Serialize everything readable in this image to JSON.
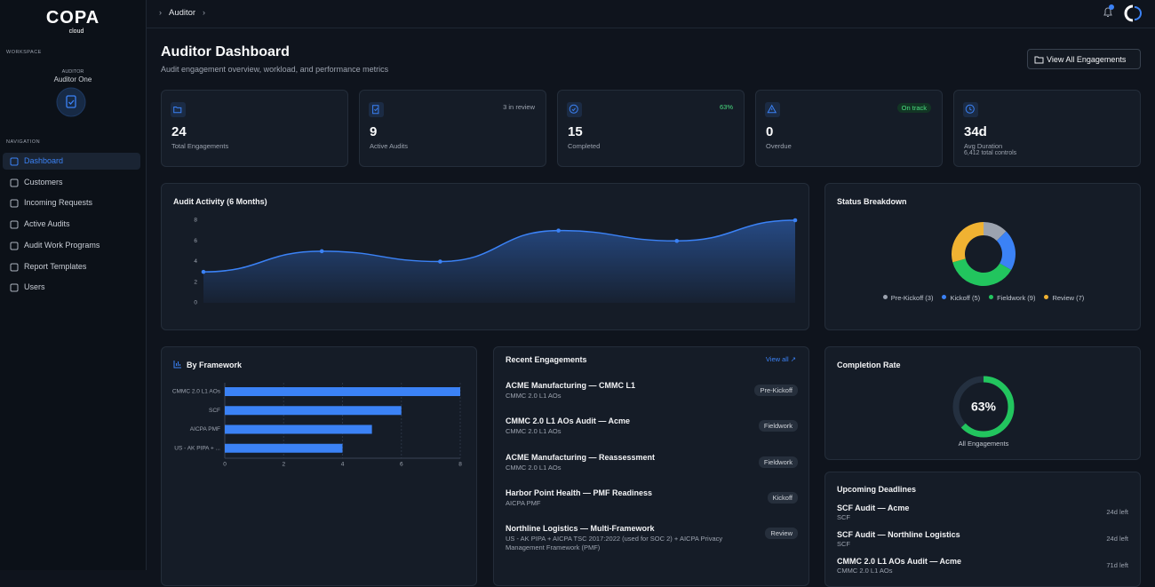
{
  "sidebar": {
    "logo": "COPA",
    "logo_sub": "cloud",
    "workspace_label": "WORKSPACE",
    "role": "AUDITOR",
    "user": "Auditor One",
    "nav_label": "NAVIGATION",
    "nav": [
      "Dashboard",
      "Customers",
      "Incoming Requests",
      "Active Audits",
      "Audit Work Programs",
      "Report Templates",
      "Users"
    ]
  },
  "header": {
    "breadcrumb": "Auditor"
  },
  "page": {
    "title": "Auditor Dashboard",
    "subtitle": "Audit engagement overview, workload, and performance metrics",
    "button": "View All Engagements"
  },
  "stats": [
    {
      "value": 24,
      "label": "Total Engagements"
    },
    {
      "value": 9,
      "label": "Active Audits",
      "note": "3 in review"
    },
    {
      "value": 15,
      "label": "Completed",
      "note": "63%"
    },
    {
      "value": 0,
      "label": "Overdue",
      "note": "On track"
    },
    {
      "value": "34d",
      "label": "Avg Duration",
      "detail": "6,412 total controls"
    }
  ],
  "chart_data": [
    {
      "type": "line",
      "title": "Audit Activity (6 Months)",
      "categories": [
        null,
        null,
        null,
        null,
        null,
        null
      ],
      "values": [
        3,
        5,
        4,
        7,
        6,
        8
      ],
      "color": "#3b82f6",
      "ylim": [
        0,
        8
      ],
      "yticks": [
        0,
        2,
        4,
        6,
        8
      ],
      "grid": false
    },
    {
      "type": "pie",
      "title": "Status Breakdown",
      "donut": true,
      "categories": [
        "Pre-Kickoff (3)",
        "Kickoff (5)",
        "Fieldwork (9)",
        "Review (7)"
      ],
      "values": [
        3,
        5,
        9,
        7
      ],
      "colors": [
        "#9ca3af",
        "#3b82f6",
        "#22c55e",
        "#f0b232"
      ]
    },
    {
      "type": "bar",
      "title": "By Framework",
      "horizontal": true,
      "categories": [
        "CMMC 2.0 L1 AOs",
        "SCF",
        "AICPA PMF",
        "US - AK PIPA + ..."
      ],
      "values": [
        8,
        6,
        5,
        4
      ],
      "color": "#3b82f6",
      "xlim": [
        0,
        8
      ],
      "xticks": [
        0,
        2,
        4,
        6,
        8
      ],
      "grid": true
    },
    {
      "type": "gauge",
      "title": "Completion Rate",
      "values": [
        63
      ],
      "value_labels": [
        "63%"
      ],
      "subtitle": "All Engagements",
      "color": "#22c55e"
    }
  ],
  "recent": {
    "title": "Recent Engagements",
    "link": "View all ↗",
    "items": [
      {
        "title": "ACME Manufacturing — CMMC L1",
        "sub": "CMMC 2.0 L1 AOs",
        "status": "Pre-Kickoff"
      },
      {
        "title": "CMMC 2.0 L1 AOs Audit — Acme",
        "sub": "CMMC 2.0 L1 AOs",
        "status": "Fieldwork"
      },
      {
        "title": "ACME Manufacturing — Reassessment",
        "sub": "CMMC 2.0 L1 AOs",
        "status": "Fieldwork"
      },
      {
        "title": "Harbor Point Health — PMF Readiness",
        "sub": "AICPA PMF",
        "status": "Kickoff"
      },
      {
        "title": "Northline Logistics — Multi-Framework",
        "sub": "US - AK PIPA + AICPA TSC 2017:2022 (used for SOC 2) + AICPA Privacy Management Framework (PMF)",
        "status": "Review"
      }
    ]
  },
  "deadlines": {
    "title": "Upcoming Deadlines",
    "items": [
      {
        "title": "SCF Audit — Acme",
        "sub": "SCF",
        "due": "24d left"
      },
      {
        "title": "SCF Audit — Northline Logistics",
        "sub": "SCF",
        "due": "24d left"
      },
      {
        "title": "CMMC 2.0 L1 AOs Audit — Acme",
        "sub": "CMMC 2.0 L1 AOs",
        "due": "71d left"
      }
    ]
  }
}
